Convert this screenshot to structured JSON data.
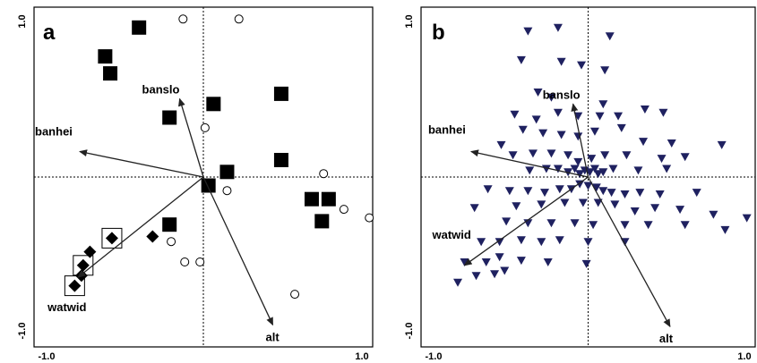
{
  "chart_data": [
    {
      "type": "scatter",
      "panel": "a",
      "xlim": [
        -1.0,
        1.0
      ],
      "ylim": [
        -1.0,
        1.0
      ],
      "x_tick_labels": [
        "-1.0",
        "1.0"
      ],
      "y_tick_labels": [
        "1.0",
        "-1.0"
      ],
      "vectors": [
        {
          "name": "banslo",
          "x": -0.14,
          "y": 0.46
        },
        {
          "name": "banhei",
          "x": -0.73,
          "y": 0.15
        },
        {
          "name": "watwid",
          "x": -0.74,
          "y": -0.59
        },
        {
          "name": "alt",
          "x": 0.41,
          "y": -0.87
        }
      ],
      "series": [
        {
          "marker": "filled-square",
          "points": [
            [
              -0.38,
              0.88
            ],
            [
              -0.58,
              0.71
            ],
            [
              -0.55,
              0.61
            ],
            [
              -0.2,
              0.35
            ],
            [
              0.06,
              0.43
            ],
            [
              0.46,
              0.49
            ],
            [
              0.46,
              0.1
            ],
            [
              0.14,
              0.03
            ],
            [
              0.03,
              -0.05
            ],
            [
              0.64,
              -0.13
            ],
            [
              0.74,
              -0.13
            ],
            [
              0.7,
              -0.26
            ],
            [
              -0.2,
              -0.28
            ]
          ]
        },
        {
          "marker": "filled-diamond",
          "points": [
            [
              -0.54,
              -0.36
            ],
            [
              -0.3,
              -0.35
            ],
            [
              -0.67,
              -0.44
            ],
            [
              -0.71,
              -0.52
            ],
            [
              -0.72,
              -0.58
            ],
            [
              -0.76,
              -0.64
            ]
          ]
        },
        {
          "marker": "open-circle",
          "points": [
            [
              -0.12,
              0.93
            ],
            [
              0.21,
              0.93
            ],
            [
              0.01,
              0.29
            ],
            [
              0.14,
              -0.08
            ],
            [
              0.71,
              0.02
            ],
            [
              0.83,
              -0.19
            ],
            [
              0.98,
              -0.24
            ],
            [
              -0.19,
              -0.38
            ],
            [
              -0.11,
              -0.5
            ],
            [
              -0.02,
              -0.5
            ],
            [
              0.54,
              -0.69
            ]
          ]
        },
        {
          "marker": "boxed-diamond",
          "points": [
            [
              -0.54,
              -0.36
            ],
            [
              -0.71,
              -0.52
            ],
            [
              -0.76,
              -0.64
            ]
          ]
        }
      ]
    },
    {
      "type": "scatter",
      "panel": "b",
      "xlim": [
        -1.0,
        1.0
      ],
      "ylim": [
        -1.0,
        1.0
      ],
      "x_tick_labels": [
        "-1.0",
        "1.0"
      ],
      "y_tick_labels": [
        "1.0",
        "-1.0"
      ],
      "vectors": [
        {
          "name": "banslo",
          "x": -0.09,
          "y": 0.43
        },
        {
          "name": "banhei",
          "x": -0.7,
          "y": 0.15
        },
        {
          "name": "watwid",
          "x": -0.74,
          "y": -0.52
        },
        {
          "name": "alt",
          "x": 0.49,
          "y": -0.88
        }
      ],
      "series": [
        {
          "marker": "filled-triangle-down",
          "color": "#1f2160",
          "points": [
            [
              -0.36,
              0.86
            ],
            [
              -0.18,
              0.88
            ],
            [
              0.13,
              0.83
            ],
            [
              -0.4,
              0.69
            ],
            [
              -0.16,
              0.68
            ],
            [
              -0.04,
              0.66
            ],
            [
              0.1,
              0.63
            ],
            [
              -0.3,
              0.5
            ],
            [
              -0.22,
              0.47
            ],
            [
              0.09,
              0.43
            ],
            [
              -0.44,
              0.37
            ],
            [
              -0.31,
              0.34
            ],
            [
              -0.18,
              0.38
            ],
            [
              -0.06,
              0.36
            ],
            [
              0.07,
              0.36
            ],
            [
              0.18,
              0.36
            ],
            [
              0.34,
              0.4
            ],
            [
              0.45,
              0.38
            ],
            [
              -0.39,
              0.28
            ],
            [
              -0.27,
              0.26
            ],
            [
              -0.16,
              0.25
            ],
            [
              -0.06,
              0.24
            ],
            [
              0.04,
              0.27
            ],
            [
              0.2,
              0.29
            ],
            [
              0.33,
              0.21
            ],
            [
              0.5,
              0.2
            ],
            [
              0.8,
              0.19
            ],
            [
              -0.52,
              0.19
            ],
            [
              -0.45,
              0.13
            ],
            [
              -0.33,
              0.14
            ],
            [
              -0.22,
              0.14
            ],
            [
              -0.12,
              0.13
            ],
            [
              -0.06,
              0.09
            ],
            [
              0.02,
              0.11
            ],
            [
              0.1,
              0.13
            ],
            [
              0.23,
              0.13
            ],
            [
              0.44,
              0.11
            ],
            [
              0.58,
              0.12
            ],
            [
              -0.35,
              0.04
            ],
            [
              -0.25,
              0.05
            ],
            [
              -0.18,
              0.05
            ],
            [
              -0.12,
              0.03
            ],
            [
              -0.08,
              0.05
            ],
            [
              -0.05,
              0.02
            ],
            [
              -0.02,
              0.04
            ],
            [
              0.01,
              0.03
            ],
            [
              0.04,
              0.05
            ],
            [
              0.06,
              0.02
            ],
            [
              0.09,
              0.03
            ],
            [
              0.15,
              0.05
            ],
            [
              0.3,
              0.04
            ],
            [
              0.47,
              0.05
            ],
            [
              -0.6,
              -0.07
            ],
            [
              -0.47,
              -0.08
            ],
            [
              -0.36,
              -0.08
            ],
            [
              -0.26,
              -0.09
            ],
            [
              -0.17,
              -0.07
            ],
            [
              -0.1,
              -0.07
            ],
            [
              -0.05,
              -0.04
            ],
            [
              0.0,
              -0.05
            ],
            [
              0.05,
              -0.06
            ],
            [
              0.09,
              -0.08
            ],
            [
              0.14,
              -0.09
            ],
            [
              0.22,
              -0.1
            ],
            [
              0.31,
              -0.09
            ],
            [
              0.43,
              -0.1
            ],
            [
              0.65,
              -0.09
            ],
            [
              -0.68,
              -0.18
            ],
            [
              -0.43,
              -0.17
            ],
            [
              -0.28,
              -0.16
            ],
            [
              -0.14,
              -0.15
            ],
            [
              -0.03,
              -0.15
            ],
            [
              0.06,
              -0.15
            ],
            [
              0.16,
              -0.16
            ],
            [
              0.28,
              -0.2
            ],
            [
              0.4,
              -0.18
            ],
            [
              0.55,
              -0.19
            ],
            [
              0.75,
              -0.22
            ],
            [
              0.95,
              -0.24
            ],
            [
              -0.49,
              -0.26
            ],
            [
              -0.36,
              -0.27
            ],
            [
              -0.22,
              -0.27
            ],
            [
              -0.08,
              -0.27
            ],
            [
              0.03,
              -0.28
            ],
            [
              0.22,
              -0.28
            ],
            [
              0.36,
              -0.28
            ],
            [
              0.58,
              -0.28
            ],
            [
              0.82,
              -0.31
            ],
            [
              -0.64,
              -0.38
            ],
            [
              -0.53,
              -0.38
            ],
            [
              -0.4,
              -0.37
            ],
            [
              -0.28,
              -0.38
            ],
            [
              -0.17,
              -0.37
            ],
            [
              -0.0,
              -0.38
            ],
            [
              0.22,
              -0.38
            ],
            [
              -0.74,
              -0.5
            ],
            [
              -0.61,
              -0.5
            ],
            [
              -0.53,
              -0.47
            ],
            [
              -0.4,
              -0.49
            ],
            [
              -0.24,
              -0.5
            ],
            [
              -0.01,
              -0.51
            ],
            [
              -0.78,
              -0.62
            ],
            [
              -0.67,
              -0.58
            ],
            [
              -0.56,
              -0.57
            ],
            [
              -0.5,
              -0.55
            ]
          ]
        }
      ]
    }
  ]
}
